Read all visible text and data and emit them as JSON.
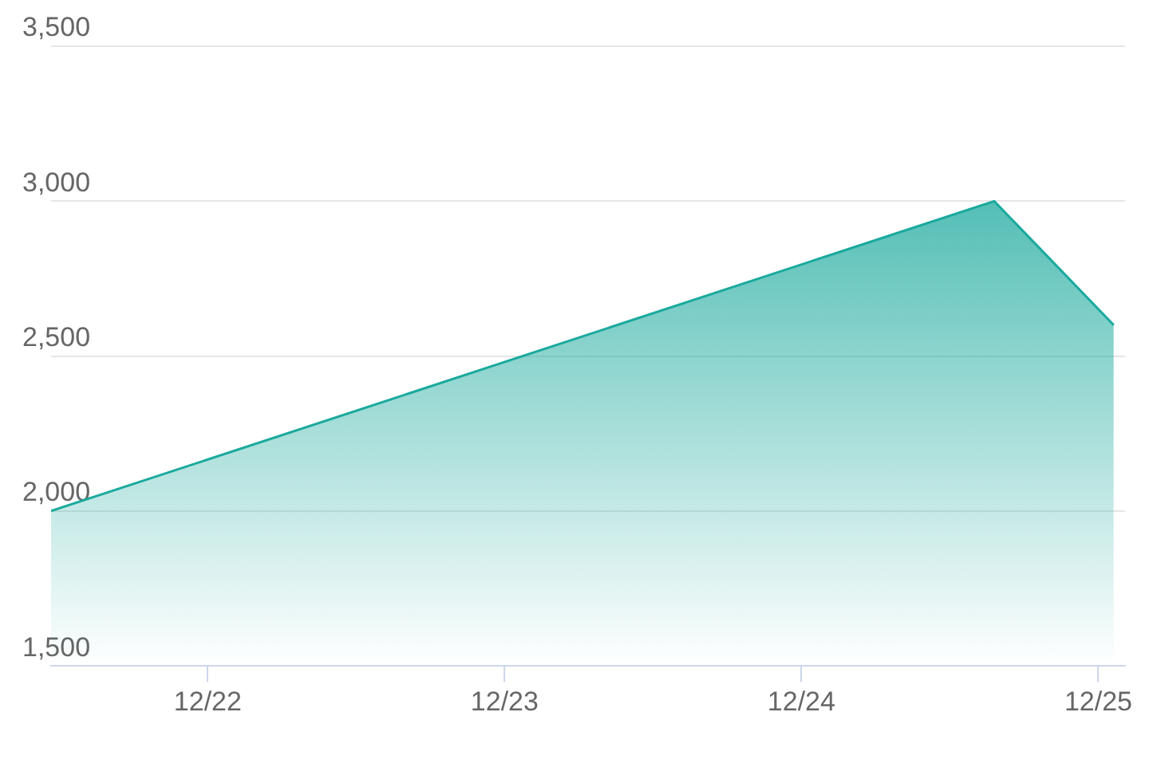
{
  "chart_data": {
    "type": "area",
    "x": [
      "--12-21T11:20",
      "--12-24T15:35",
      "--12-25T01:15"
    ],
    "series": [
      {
        "color": "#1aa99d",
        "values": [
          2000,
          3000,
          2600
        ]
      }
    ],
    "xlim": [
      "--12-21T11:20",
      "--12-25T02:10"
    ],
    "xticks": [
      {
        "value": "--12-22",
        "label": "12/22"
      },
      {
        "value": "--12-23",
        "label": "12/23"
      },
      {
        "value": "--12-24",
        "label": "12/24"
      },
      {
        "value": "--12-25",
        "label": "12/25"
      }
    ],
    "ylim": [
      1500,
      3500
    ],
    "yticks": [
      {
        "value": 1500,
        "label": "1,500"
      },
      {
        "value": 2000,
        "label": "2,000"
      },
      {
        "value": 2500,
        "label": "2,500"
      },
      {
        "value": 3000,
        "label": "3,000"
      },
      {
        "value": 3500,
        "label": "3,500"
      }
    ],
    "grid": "y",
    "legend": false,
    "marker": "none"
  }
}
